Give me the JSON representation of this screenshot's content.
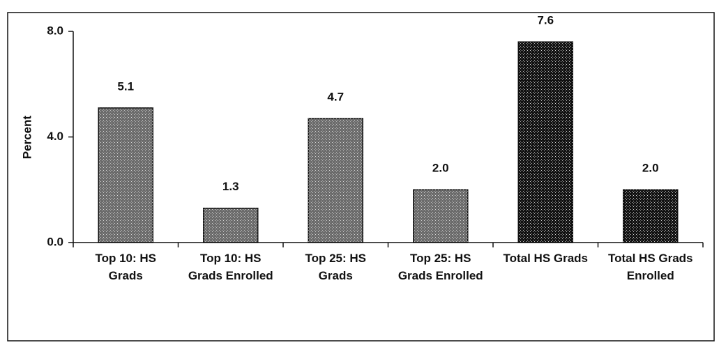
{
  "chart_data": {
    "type": "bar",
    "y_label": "Percent",
    "categories": [
      "Top 10: HS Grads",
      "Top 10: HS Grads Enrolled",
      "Top 25: HS Grads",
      "Top 25: HS Grads Enrolled",
      "Total HS Grads",
      "Total HS Grads Enrolled"
    ],
    "values": [
      5.1,
      1.3,
      4.7,
      2.0,
      7.6,
      2.0
    ],
    "value_labels": [
      "5.1",
      "1.3",
      "4.7",
      "2.0",
      "7.6",
      "2.0"
    ],
    "colors": [
      "#6b6b6b",
      "#6b6b6b",
      "#6b6b6b",
      "#6b6b6b",
      "#111111",
      "#111111"
    ],
    "ylim": [
      0,
      8
    ],
    "yticks": [
      {
        "value": 0,
        "label": "0.0"
      },
      {
        "value": 4,
        "label": "4.0"
      },
      {
        "value": 8,
        "label": "8.0"
      }
    ],
    "grid": false
  }
}
